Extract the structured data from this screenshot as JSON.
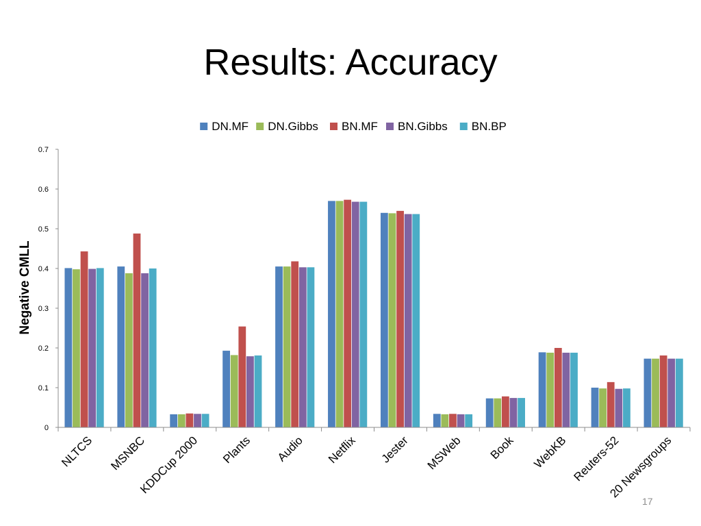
{
  "slide": {
    "title": "Results: Accuracy",
    "page_number": "17"
  },
  "chart_data": {
    "type": "bar",
    "title": "",
    "xlabel": "",
    "ylabel": "Negative CMLL",
    "ylim": [
      0,
      0.7
    ],
    "yticks": [
      "0",
      "0.1",
      "0.2",
      "0.3",
      "0.4",
      "0.5",
      "0.6",
      "0.7"
    ],
    "grid": false,
    "legend_position": "top",
    "categories": [
      "NLTCS",
      "MSNBC",
      "KDDCup 2000",
      "Plants",
      "Audio",
      "Netflix",
      "Jester",
      "MSWeb",
      "Book",
      "WebKB",
      "Reuters-52",
      "20 Newsgroups"
    ],
    "series": [
      {
        "name": "DN.MF",
        "color": "#4f81bd",
        "values": [
          0.401,
          0.405,
          0.033,
          0.193,
          0.405,
          0.57,
          0.54,
          0.034,
          0.073,
          0.189,
          0.1,
          0.173
        ]
      },
      {
        "name": "DN.Gibbs",
        "color": "#9bbb59",
        "values": [
          0.398,
          0.388,
          0.033,
          0.182,
          0.405,
          0.57,
          0.539,
          0.033,
          0.073,
          0.188,
          0.098,
          0.173
        ]
      },
      {
        "name": "BN.MF",
        "color": "#c0504d",
        "values": [
          0.443,
          0.488,
          0.035,
          0.254,
          0.418,
          0.573,
          0.545,
          0.034,
          0.078,
          0.2,
          0.114,
          0.181
        ]
      },
      {
        "name": "BN.Gibbs",
        "color": "#8064a2",
        "values": [
          0.399,
          0.388,
          0.034,
          0.179,
          0.403,
          0.568,
          0.537,
          0.033,
          0.074,
          0.188,
          0.097,
          0.173
        ]
      },
      {
        "name": "BN.BP",
        "color": "#4bacc6",
        "values": [
          0.401,
          0.4,
          0.034,
          0.181,
          0.403,
          0.568,
          0.537,
          0.033,
          0.074,
          0.188,
          0.098,
          0.173
        ]
      }
    ]
  }
}
